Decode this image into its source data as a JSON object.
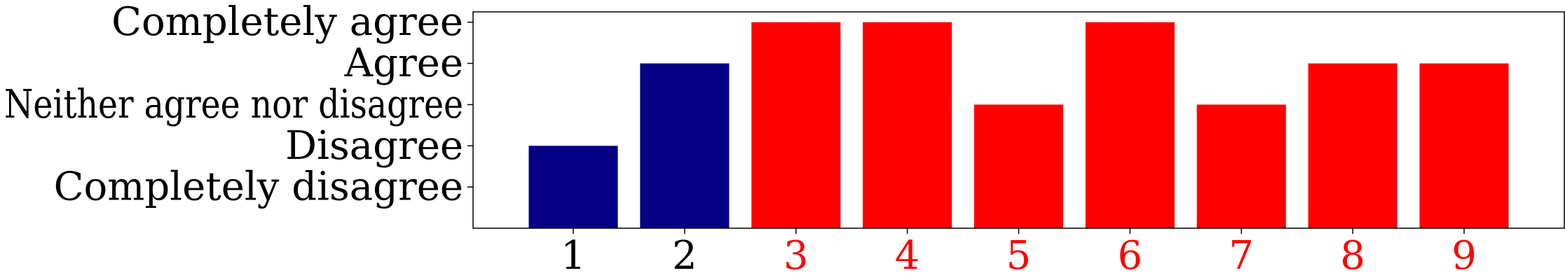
{
  "chart_data": {
    "type": "bar",
    "categories": [
      "1",
      "2",
      "3",
      "4",
      "5",
      "6",
      "7",
      "8",
      "9"
    ],
    "values": [
      2,
      4,
      5,
      5,
      3,
      5,
      3,
      4,
      4
    ],
    "category_colors": [
      "#060086",
      "#060086",
      "#ff0000",
      "#ff0000",
      "#ff0000",
      "#ff0000",
      "#ff0000",
      "#ff0000",
      "#ff0000"
    ],
    "tick_label_colors": [
      "#000000",
      "#000000",
      "#ff0000",
      "#ff0000",
      "#ff0000",
      "#ff0000",
      "#ff0000",
      "#ff0000",
      "#ff0000"
    ],
    "y_ticks": [
      {
        "value": 1,
        "label": "Completely disagree"
      },
      {
        "value": 2,
        "label": "Disagree"
      },
      {
        "value": 3,
        "label": "Neither agree nor disagree"
      },
      {
        "value": 4,
        "label": "Agree"
      },
      {
        "value": 5,
        "label": "Completely agree"
      }
    ],
    "ylim": [
      0,
      5.25
    ],
    "title": "",
    "xlabel": "",
    "ylabel": "",
    "grid": false,
    "legend": "none"
  }
}
